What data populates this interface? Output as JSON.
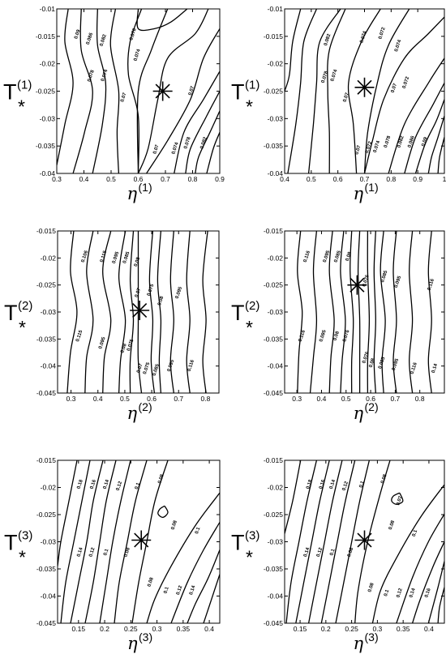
{
  "chart_data": [
    {
      "type": "contour",
      "ylabel": "T",
      "ylabel_sub": "*",
      "ylabel_sup": "(1)",
      "xlabel": "η",
      "xlabel_sup": "(1)",
      "xlim": [
        0.3,
        0.9
      ],
      "ylim": [
        -0.04,
        -0.01
      ],
      "xticks": [
        "0.3",
        "0.4",
        "0.5",
        "0.6",
        "0.7",
        "0.8",
        "0.9"
      ],
      "yticks": [
        "-0.01",
        "-0.015",
        "-0.02",
        "-0.025",
        "-0.03",
        "-0.035",
        "-0.04"
      ],
      "marker": {
        "x": 0.69,
        "y": -0.025
      },
      "contour_labels": [
        {
          "text": "0.09",
          "x": 0.38,
          "y": -0.0147
        },
        {
          "text": "0.086",
          "x": 0.425,
          "y": -0.0155
        },
        {
          "text": "0.082",
          "x": 0.475,
          "y": -0.0158
        },
        {
          "text": "0.078",
          "x": 0.585,
          "y": -0.0147
        },
        {
          "text": "0.074",
          "x": 0.6,
          "y": -0.0185
        },
        {
          "text": "0.078",
          "x": 0.43,
          "y": -0.0223
        },
        {
          "text": "0.074",
          "x": 0.48,
          "y": -0.0222
        },
        {
          "text": "0.07",
          "x": 0.55,
          "y": -0.0262
        },
        {
          "text": "0.07",
          "x": 0.8,
          "y": -0.025
        },
        {
          "text": "0.07",
          "x": 0.67,
          "y": -0.0357
        },
        {
          "text": "0.074",
          "x": 0.74,
          "y": -0.0355
        },
        {
          "text": "0.078",
          "x": 0.785,
          "y": -0.0345
        },
        {
          "text": "0.082",
          "x": 0.845,
          "y": -0.0345
        }
      ]
    },
    {
      "type": "contour",
      "ylabel": "T",
      "ylabel_sub": "*",
      "ylabel_sup": "(1)",
      "xlabel": "η",
      "xlabel_sup": "(1)",
      "xlim": [
        0.4,
        1.0
      ],
      "ylim": [
        -0.04,
        -0.01
      ],
      "xticks": [
        "0.4",
        "0.5",
        "0.6",
        "0.7",
        "0.8",
        "0.9",
        "1"
      ],
      "yticks": [
        "-0.01",
        "-0.015",
        "-0.02",
        "-0.025",
        "-0.03",
        "-0.035",
        "-0.04"
      ],
      "marker": {
        "x": 0.7,
        "y": -0.0243
      },
      "contour_labels": [
        {
          "text": "0.082",
          "x": 0.565,
          "y": -0.0157
        },
        {
          "text": "0.078",
          "x": 0.555,
          "y": -0.0225
        },
        {
          "text": "0.074",
          "x": 0.59,
          "y": -0.0222
        },
        {
          "text": "0.07",
          "x": 0.635,
          "y": -0.0262
        },
        {
          "text": "0.074",
          "x": 0.7,
          "y": -0.0152
        },
        {
          "text": "0.072",
          "x": 0.77,
          "y": -0.0145
        },
        {
          "text": "0.074",
          "x": 0.83,
          "y": -0.0168
        },
        {
          "text": "0.07",
          "x": 0.815,
          "y": -0.0245
        },
        {
          "text": "0.072",
          "x": 0.86,
          "y": -0.0235
        },
        {
          "text": "0.07",
          "x": 0.68,
          "y": -0.0358
        },
        {
          "text": "0.072",
          "x": 0.72,
          "y": -0.0353
        },
        {
          "text": "0.074",
          "x": 0.75,
          "y": -0.0352
        },
        {
          "text": "0.078",
          "x": 0.79,
          "y": -0.0343
        },
        {
          "text": "0.082",
          "x": 0.84,
          "y": -0.0343
        },
        {
          "text": "0.086",
          "x": 0.88,
          "y": -0.0343
        },
        {
          "text": "0.09",
          "x": 0.93,
          "y": -0.0343
        }
      ]
    },
    {
      "type": "contour",
      "ylabel": "T",
      "ylabel_sub": "*",
      "ylabel_sup": "(2)",
      "xlabel": "η",
      "xlabel_sup": "(2)",
      "xlim": [
        0.25,
        0.85
      ],
      "ylim": [
        -0.045,
        -0.015
      ],
      "xticks": [
        "0.3",
        "0.4",
        "0.5",
        "0.6",
        "0.7",
        "0.8"
      ],
      "yticks": [
        "-0.015",
        "-0.02",
        "-0.025",
        "-0.03",
        "-0.035",
        "-0.04",
        "-0.045"
      ],
      "marker": {
        "x": 0.555,
        "y": -0.0297
      },
      "contour_labels": [
        {
          "text": "0.106",
          "x": 0.355,
          "y": -0.0198
        },
        {
          "text": "0.115",
          "x": 0.425,
          "y": -0.0198
        },
        {
          "text": "0.095",
          "x": 0.47,
          "y": -0.02
        },
        {
          "text": "0.085",
          "x": 0.51,
          "y": -0.02
        },
        {
          "text": "0.08",
          "x": 0.55,
          "y": -0.0208
        },
        {
          "text": "0.07",
          "x": 0.553,
          "y": -0.0265
        },
        {
          "text": "0.075",
          "x": 0.6,
          "y": -0.026
        },
        {
          "text": "0.08",
          "x": 0.638,
          "y": -0.028
        },
        {
          "text": "0.095",
          "x": 0.705,
          "y": -0.0265
        },
        {
          "text": "0.115",
          "x": 0.335,
          "y": -0.0345
        },
        {
          "text": "0.095",
          "x": 0.42,
          "y": -0.0358
        },
        {
          "text": "0.08",
          "x": 0.5,
          "y": -0.0368
        },
        {
          "text": "0.075",
          "x": 0.525,
          "y": -0.0362
        },
        {
          "text": "0.07",
          "x": 0.56,
          "y": -0.0405
        },
        {
          "text": "0.075",
          "x": 0.585,
          "y": -0.0405
        },
        {
          "text": "0.085",
          "x": 0.62,
          "y": -0.0408
        },
        {
          "text": "0.095",
          "x": 0.675,
          "y": -0.04
        },
        {
          "text": "0.116",
          "x": 0.75,
          "y": -0.04
        }
      ]
    },
    {
      "type": "contour",
      "ylabel": "T",
      "ylabel_sub": "*",
      "ylabel_sup": "(2)",
      "xlabel": "η",
      "xlabel_sup": "(2)",
      "xlim": [
        0.25,
        0.9
      ],
      "ylim": [
        -0.045,
        -0.015
      ],
      "xticks": [
        "0.3",
        "0.4",
        "0.5",
        "0.6",
        "0.7",
        "0.8"
      ],
      "yticks": [
        "-0.015",
        "-0.02",
        "-0.025",
        "-0.03",
        "-0.035",
        "-0.04",
        "-0.045"
      ],
      "marker": {
        "x": 0.545,
        "y": -0.025
      },
      "contour_labels": [
        {
          "text": "0.116",
          "x": 0.345,
          "y": -0.0198
        },
        {
          "text": "0.095",
          "x": 0.425,
          "y": -0.0198
        },
        {
          "text": "0.085",
          "x": 0.47,
          "y": -0.0198
        },
        {
          "text": "0.08",
          "x": 0.515,
          "y": -0.0198
        },
        {
          "text": "0.076",
          "x": 0.585,
          "y": -0.0243
        },
        {
          "text": "0.085",
          "x": 0.66,
          "y": -0.0235
        },
        {
          "text": "0.095",
          "x": 0.715,
          "y": -0.0245
        },
        {
          "text": "0.116",
          "x": 0.85,
          "y": -0.025
        },
        {
          "text": "0.116",
          "x": 0.325,
          "y": -0.0345
        },
        {
          "text": "0.095",
          "x": 0.41,
          "y": -0.0345
        },
        {
          "text": "0.08",
          "x": 0.465,
          "y": -0.0345
        },
        {
          "text": "0.076",
          "x": 0.505,
          "y": -0.0345
        },
        {
          "text": "0.076",
          "x": 0.585,
          "y": -0.0385
        },
        {
          "text": "0.08",
          "x": 0.61,
          "y": -0.0395
        },
        {
          "text": "0.085",
          "x": 0.65,
          "y": -0.0395
        },
        {
          "text": "0.095",
          "x": 0.705,
          "y": -0.0398
        },
        {
          "text": "0.116",
          "x": 0.78,
          "y": -0.0405
        },
        {
          "text": "0.14",
          "x": 0.865,
          "y": -0.0405
        }
      ]
    },
    {
      "type": "contour",
      "ylabel": "T",
      "ylabel_sub": "*",
      "ylabel_sup": "(3)",
      "xlabel": "η",
      "xlabel_sup": "(3)",
      "xlim": [
        0.11,
        0.42
      ],
      "ylim": [
        -0.045,
        -0.015
      ],
      "xticks": [
        "0.15",
        "0.2",
        "0.25",
        "0.3",
        "0.35",
        "0.4"
      ],
      "yticks": [
        "-0.015",
        "-0.02",
        "-0.025",
        "-0.03",
        "-0.035",
        "-0.04",
        "-0.045"
      ],
      "marker": {
        "x": 0.27,
        "y": -0.0297
      },
      "contour_labels": [
        {
          "text": "0.18",
          "x": 0.155,
          "y": -0.0195
        },
        {
          "text": "0.16",
          "x": 0.18,
          "y": -0.0195
        },
        {
          "text": "0.14",
          "x": 0.205,
          "y": -0.0195
        },
        {
          "text": "0.12",
          "x": 0.23,
          "y": -0.0198
        },
        {
          "text": "0.1",
          "x": 0.265,
          "y": -0.0198
        },
        {
          "text": "0.08",
          "x": 0.31,
          "y": -0.0185
        },
        {
          "text": "0.08",
          "x": 0.335,
          "y": -0.027
        },
        {
          "text": "0.1",
          "x": 0.38,
          "y": -0.028
        },
        {
          "text": "0.14",
          "x": 0.155,
          "y": -0.032
        },
        {
          "text": "0.12",
          "x": 0.178,
          "y": -0.032
        },
        {
          "text": "0.1",
          "x": 0.205,
          "y": -0.032
        },
        {
          "text": "0.08",
          "x": 0.245,
          "y": -0.032
        },
        {
          "text": "0.08",
          "x": 0.29,
          "y": -0.0375
        },
        {
          "text": "0.1",
          "x": 0.32,
          "y": -0.039
        },
        {
          "text": "0.12",
          "x": 0.345,
          "y": -0.039
        },
        {
          "text": "0.14",
          "x": 0.37,
          "y": -0.039
        }
      ]
    },
    {
      "type": "contour",
      "ylabel": "T",
      "ylabel_sub": "*",
      "ylabel_sup": "(3)",
      "xlabel": "η",
      "xlabel_sup": "(3)",
      "xlim": [
        0.12,
        0.43
      ],
      "ylim": [
        -0.045,
        -0.015
      ],
      "xticks": [
        "0.15",
        "0.2",
        "0.25",
        "0.3",
        "0.35",
        "0.4"
      ],
      "yticks": [
        "-0.015",
        "-0.02",
        "-0.025",
        "-0.03",
        "-0.035",
        "-0.04",
        "-0.045"
      ],
      "marker": {
        "x": 0.275,
        "y": -0.0297
      },
      "contour_labels": [
        {
          "text": "0.18",
          "x": 0.17,
          "y": -0.0195
        },
        {
          "text": "0.16",
          "x": 0.195,
          "y": -0.0195
        },
        {
          "text": "0.14",
          "x": 0.215,
          "y": -0.0195
        },
        {
          "text": "0.12",
          "x": 0.24,
          "y": -0.0198
        },
        {
          "text": "0.1",
          "x": 0.272,
          "y": -0.0195
        },
        {
          "text": "0.08",
          "x": 0.315,
          "y": -0.0185
        },
        {
          "text": "0.07",
          "x": 0.345,
          "y": -0.0225
        },
        {
          "text": "0.08",
          "x": 0.33,
          "y": -0.027
        },
        {
          "text": "0.1",
          "x": 0.375,
          "y": -0.0285
        },
        {
          "text": "0.14",
          "x": 0.165,
          "y": -0.032
        },
        {
          "text": "0.12",
          "x": 0.19,
          "y": -0.032
        },
        {
          "text": "0.1",
          "x": 0.215,
          "y": -0.032
        },
        {
          "text": "0.08",
          "x": 0.25,
          "y": -0.032
        },
        {
          "text": "0.08",
          "x": 0.29,
          "y": -0.0385
        },
        {
          "text": "0.1",
          "x": 0.32,
          "y": -0.0395
        },
        {
          "text": "0.12",
          "x": 0.345,
          "y": -0.0395
        },
        {
          "text": "0.14",
          "x": 0.37,
          "y": -0.0395
        },
        {
          "text": "0.16",
          "x": 0.4,
          "y": -0.0395
        }
      ]
    }
  ]
}
